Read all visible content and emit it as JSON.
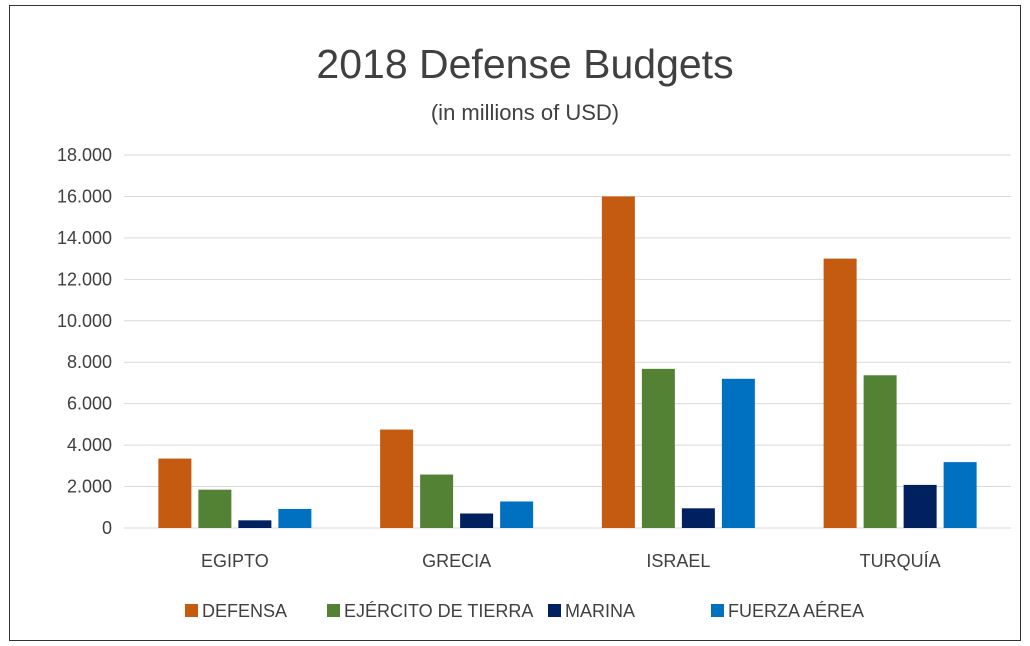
{
  "chart_data": {
    "type": "bar",
    "title": "2018 Defense Budgets",
    "subtitle": "(in millions of USD)",
    "categories": [
      "EGIPTO",
      "GRECIA",
      "ISRAEL",
      "TURQUÍA"
    ],
    "series": [
      {
        "name": "DEFENSA",
        "color": "#C55A11",
        "values": [
          3350,
          4750,
          16000,
          13000
        ]
      },
      {
        "name": "EJÉRCITO DE TIERRA",
        "color": "#548235",
        "values": [
          1850,
          2580,
          7680,
          7370
        ]
      },
      {
        "name": "MARINA",
        "color": "#002060",
        "values": [
          370,
          700,
          950,
          2080
        ]
      },
      {
        "name": "FUERZA AÉREA",
        "color": "#0070C0",
        "values": [
          920,
          1280,
          7200,
          3180
        ]
      }
    ],
    "ylim": [
      0,
      18000
    ],
    "yticks": [
      0,
      2000,
      4000,
      6000,
      8000,
      10000,
      12000,
      14000,
      16000,
      18000
    ],
    "ytick_labels": [
      "0",
      "2.000",
      "4.000",
      "6.000",
      "8.000",
      "10.000",
      "12.000",
      "14.000",
      "16.000",
      "18.000"
    ],
    "grid": true,
    "legend_position": "bottom"
  }
}
